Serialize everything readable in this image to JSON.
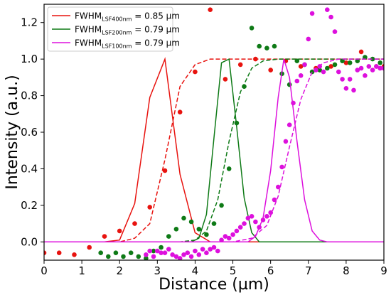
{
  "chart_data": {
    "type": "line",
    "xlabel": "Distance (µm)",
    "ylabel": "Intensity (a.u.)",
    "xlim": [
      0,
      9
    ],
    "ylim": [
      -0.1,
      1.3
    ],
    "x_ticks": [
      "0",
      "1",
      "2",
      "3",
      "4",
      "5",
      "6",
      "7",
      "8",
      "9"
    ],
    "x_tick_values": [
      0,
      1,
      2,
      3,
      4,
      5,
      6,
      7,
      8,
      9
    ],
    "y_ticks": [
      "0.0",
      "0.2",
      "0.4",
      "0.6",
      "0.8",
      "1.0",
      "1.2"
    ],
    "y_tick_values": [
      0.0,
      0.2,
      0.4,
      0.6,
      0.8,
      1.0,
      1.2
    ],
    "legend_position": "top-left",
    "series": [
      {
        "legend_label": {
          "prefix": "FWHM",
          "sub": "LSF400nm",
          "suffix": " = 0.85 µm"
        },
        "color": "#e8130f",
        "lsf": [
          [
            0,
            0
          ],
          [
            1.6,
            0
          ],
          [
            2.0,
            0.01
          ],
          [
            2.4,
            0.21
          ],
          [
            2.8,
            0.79
          ],
          [
            3.2,
            1.0
          ],
          [
            3.6,
            0.37
          ],
          [
            4.0,
            0.05
          ],
          [
            4.4,
            0.0
          ],
          [
            9,
            0
          ]
        ],
        "esf": [
          [
            0,
            0
          ],
          [
            1.6,
            0
          ],
          [
            2.0,
            0.0
          ],
          [
            2.4,
            0.02
          ],
          [
            2.8,
            0.1
          ],
          [
            3.2,
            0.45
          ],
          [
            3.6,
            0.85
          ],
          [
            4.0,
            0.97
          ],
          [
            4.4,
            1.0
          ],
          [
            9,
            1.0
          ]
        ],
        "scatter": [
          [
            0.0,
            -0.06
          ],
          [
            0.4,
            -0.06
          ],
          [
            0.8,
            -0.07
          ],
          [
            1.2,
            -0.03
          ],
          [
            1.6,
            0.03
          ],
          [
            2.0,
            0.06
          ],
          [
            2.4,
            0.1
          ],
          [
            2.8,
            0.19
          ],
          [
            3.2,
            0.39
          ],
          [
            3.6,
            0.71
          ],
          [
            4.0,
            0.93
          ],
          [
            4.4,
            1.27
          ],
          [
            4.8,
            0.89
          ],
          [
            5.2,
            0.97
          ],
          [
            5.6,
            1.0
          ],
          [
            6.0,
            0.94
          ],
          [
            6.4,
            0.99
          ],
          [
            6.8,
            0.96
          ],
          [
            7.2,
            0.95
          ],
          [
            7.6,
            0.96
          ],
          [
            8.0,
            0.98
          ],
          [
            8.4,
            1.04
          ],
          [
            8.8,
            0.96
          ],
          [
            9.0,
            0.96
          ]
        ]
      },
      {
        "legend_label": {
          "prefix": "FWHM",
          "sub": "LSF200nm",
          "suffix": " = 0.79 µm"
        },
        "color": "#0e7a16",
        "lsf": [
          [
            0,
            0
          ],
          [
            3.9,
            0
          ],
          [
            4.1,
            0.02
          ],
          [
            4.3,
            0.15
          ],
          [
            4.5,
            0.57
          ],
          [
            4.7,
            0.98
          ],
          [
            4.9,
            1.0
          ],
          [
            5.1,
            0.63
          ],
          [
            5.3,
            0.24
          ],
          [
            5.5,
            0.05
          ],
          [
            5.7,
            0.0
          ],
          [
            9,
            0
          ]
        ],
        "esf": [
          [
            0,
            0
          ],
          [
            3.6,
            0
          ],
          [
            4.0,
            0.01
          ],
          [
            4.3,
            0.06
          ],
          [
            4.6,
            0.23
          ],
          [
            4.9,
            0.55
          ],
          [
            5.2,
            0.82
          ],
          [
            5.5,
            0.95
          ],
          [
            5.8,
            0.99
          ],
          [
            6.2,
            1.0
          ],
          [
            9,
            1.0
          ]
        ],
        "scatter": [
          [
            1.5,
            -0.06
          ],
          [
            1.7,
            -0.08
          ],
          [
            1.9,
            -0.06
          ],
          [
            2.1,
            -0.08
          ],
          [
            2.3,
            -0.06
          ],
          [
            2.5,
            -0.08
          ],
          [
            2.7,
            -0.09
          ],
          [
            2.9,
            -0.05
          ],
          [
            3.1,
            -0.03
          ],
          [
            3.3,
            0.03
          ],
          [
            3.5,
            0.07
          ],
          [
            3.7,
            0.13
          ],
          [
            3.9,
            0.11
          ],
          [
            4.1,
            0.07
          ],
          [
            4.3,
            0.04
          ],
          [
            4.5,
            0.1
          ],
          [
            4.7,
            0.2
          ],
          [
            4.9,
            0.4
          ],
          [
            5.1,
            0.65
          ],
          [
            5.3,
            0.85
          ],
          [
            5.5,
            1.17
          ],
          [
            5.7,
            1.07
          ],
          [
            5.9,
            1.06
          ],
          [
            6.1,
            1.07
          ],
          [
            6.3,
            0.92
          ],
          [
            6.5,
            0.86
          ],
          [
            6.7,
            0.99
          ],
          [
            6.9,
            0.97
          ],
          [
            7.1,
            0.93
          ],
          [
            7.3,
            0.94
          ],
          [
            7.5,
            0.95
          ],
          [
            7.7,
            0.97
          ],
          [
            7.9,
            0.99
          ],
          [
            8.1,
            0.98
          ],
          [
            8.3,
            0.99
          ],
          [
            8.5,
            1.01
          ],
          [
            8.7,
            1.0
          ],
          [
            8.9,
            0.98
          ]
        ]
      },
      {
        "legend_label": {
          "prefix": "FWHM",
          "sub": "LSF100nm",
          "suffix": " = 0.79 µm"
        },
        "color": "#dd10dd",
        "lsf": [
          [
            0,
            0
          ],
          [
            5.4,
            0
          ],
          [
            5.6,
            0.03
          ],
          [
            5.8,
            0.13
          ],
          [
            6.0,
            0.39
          ],
          [
            6.2,
            0.79
          ],
          [
            6.35,
            1.0
          ],
          [
            6.5,
            0.9
          ],
          [
            6.7,
            0.55
          ],
          [
            6.9,
            0.23
          ],
          [
            7.1,
            0.06
          ],
          [
            7.3,
            0.01
          ],
          [
            7.5,
            0.0
          ],
          [
            9,
            0
          ]
        ],
        "esf": [
          [
            0,
            0
          ],
          [
            5.0,
            0
          ],
          [
            5.5,
            0.02
          ],
          [
            5.9,
            0.09
          ],
          [
            6.2,
            0.25
          ],
          [
            6.5,
            0.52
          ],
          [
            6.8,
            0.78
          ],
          [
            7.1,
            0.93
          ],
          [
            7.4,
            0.98
          ],
          [
            7.8,
            1.0
          ],
          [
            9,
            1.0
          ]
        ],
        "scatter": [
          [
            2.7,
            -0.07
          ],
          [
            2.8,
            -0.05
          ],
          [
            2.9,
            -0.08
          ],
          [
            3.0,
            -0.05
          ],
          [
            3.1,
            -0.06
          ],
          [
            3.2,
            -0.06
          ],
          [
            3.3,
            -0.04
          ],
          [
            3.4,
            -0.07
          ],
          [
            3.5,
            -0.08
          ],
          [
            3.6,
            -0.09
          ],
          [
            3.7,
            -0.07
          ],
          [
            3.8,
            -0.06
          ],
          [
            3.9,
            -0.08
          ],
          [
            4.0,
            -0.05
          ],
          [
            4.1,
            -0.07
          ],
          [
            4.2,
            -0.04
          ],
          [
            4.3,
            -0.06
          ],
          [
            4.4,
            -0.04
          ],
          [
            4.5,
            -0.03
          ],
          [
            4.6,
            -0.05
          ],
          [
            4.7,
            0.01
          ],
          [
            4.8,
            0.03
          ],
          [
            4.9,
            0.02
          ],
          [
            5.0,
            0.04
          ],
          [
            5.1,
            0.06
          ],
          [
            5.2,
            0.08
          ],
          [
            5.3,
            0.1
          ],
          [
            5.4,
            0.13
          ],
          [
            5.5,
            0.14
          ],
          [
            5.6,
            0.11
          ],
          [
            5.7,
            0.08
          ],
          [
            5.8,
            0.12
          ],
          [
            5.9,
            0.14
          ],
          [
            6.0,
            0.16
          ],
          [
            6.1,
            0.23
          ],
          [
            6.2,
            0.3
          ],
          [
            6.3,
            0.41
          ],
          [
            6.4,
            0.55
          ],
          [
            6.5,
            0.64
          ],
          [
            6.6,
            0.76
          ],
          [
            6.7,
            0.88
          ],
          [
            6.8,
            0.91
          ],
          [
            6.9,
            0.97
          ],
          [
            7.0,
            1.11
          ],
          [
            7.1,
            1.25
          ],
          [
            7.2,
            0.94
          ],
          [
            7.3,
            0.96
          ],
          [
            7.4,
            0.93
          ],
          [
            7.5,
            1.27
          ],
          [
            7.6,
            1.23
          ],
          [
            7.7,
            1.15
          ],
          [
            7.8,
            0.93
          ],
          [
            7.9,
            0.89
          ],
          [
            8.0,
            0.84
          ],
          [
            8.1,
            0.89
          ],
          [
            8.2,
            0.83
          ],
          [
            8.3,
            0.94
          ],
          [
            8.4,
            0.95
          ],
          [
            8.5,
            0.91
          ],
          [
            8.6,
            0.96
          ],
          [
            8.7,
            0.94
          ],
          [
            8.8,
            0.96
          ],
          [
            8.9,
            0.95
          ],
          [
            9.0,
            0.95
          ]
        ]
      }
    ]
  }
}
